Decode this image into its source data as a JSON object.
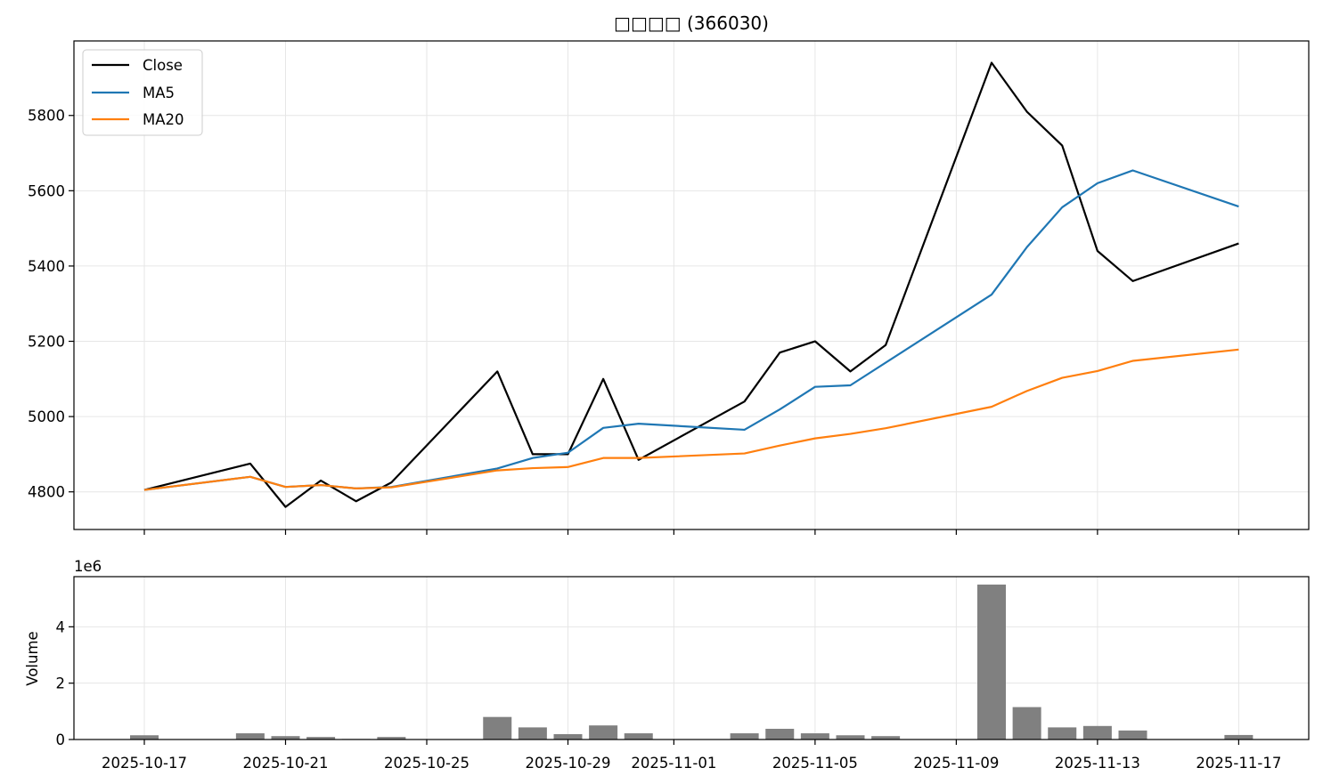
{
  "chart_data": [
    {
      "type": "line",
      "title": "□□□□ (366030)",
      "xlabel": "",
      "ylabel": "",
      "x": [
        "2025-10-17",
        "2025-10-20",
        "2025-10-21",
        "2025-10-22",
        "2025-10-23",
        "2025-10-24",
        "2025-10-27",
        "2025-10-28",
        "2025-10-29",
        "2025-10-30",
        "2025-10-31",
        "2025-11-03",
        "2025-11-04",
        "2025-11-05",
        "2025-11-06",
        "2025-11-07",
        "2025-11-10",
        "2025-11-11",
        "2025-11-12",
        "2025-11-13",
        "2025-11-14",
        "2025-11-17"
      ],
      "series": [
        {
          "name": "Close",
          "color": "#000000",
          "values": [
            4805,
            4875,
            4760,
            4830,
            4775,
            4825,
            5120,
            4900,
            4900,
            5100,
            4885,
            5040,
            5170,
            5200,
            5120,
            5190,
            5940,
            5810,
            5720,
            5440,
            5360,
            5460
          ]
        },
        {
          "name": "MA5",
          "color": "#1f77b4",
          "values": [
            4805,
            4840,
            4813,
            4818,
            4809,
            4813,
            4862,
            4890,
            4904,
            4970,
            4981,
            4965,
            5019,
            5079,
            5083,
            null,
            5324,
            5450,
            5556,
            5620,
            5654,
            5558
          ]
        },
        {
          "name": "MA20",
          "color": "#ff7f0e",
          "values": [
            4805,
            4840,
            4813,
            4818,
            4809,
            4812,
            4857,
            4863,
            4866,
            4890,
            4890,
            4902,
            4923,
            4942,
            4954,
            4969,
            5026,
            5068,
            5103,
            5121,
            5148,
            5178
          ]
        }
      ],
      "yticks": [
        4800,
        5000,
        5200,
        5400,
        5600,
        5800
      ],
      "ylim": [
        4700,
        5998
      ],
      "grid": true,
      "legend_position": "top-left"
    },
    {
      "type": "bar",
      "xlabel": "",
      "ylabel": "Volume",
      "offset_text": "1e6",
      "x": [
        "2025-10-17",
        "2025-10-20",
        "2025-10-21",
        "2025-10-22",
        "2025-10-23",
        "2025-10-24",
        "2025-10-27",
        "2025-10-28",
        "2025-10-29",
        "2025-10-30",
        "2025-10-31",
        "2025-11-03",
        "2025-11-04",
        "2025-11-05",
        "2025-11-06",
        "2025-11-07",
        "2025-11-10",
        "2025-11-11",
        "2025-11-12",
        "2025-11-13",
        "2025-11-14",
        "2025-11-17"
      ],
      "values": [
        150000,
        220000,
        120000,
        90000,
        20000,
        90000,
        800000,
        430000,
        190000,
        500000,
        220000,
        220000,
        380000,
        220000,
        150000,
        120000,
        5500000,
        1150000,
        430000,
        480000,
        320000,
        160000
      ],
      "bar_color": "#808080",
      "yticks": [
        0,
        2,
        4
      ],
      "ylim": [
        0,
        5780000
      ],
      "grid": true
    }
  ],
  "xticks": [
    "2025-10-17",
    "2025-10-21",
    "2025-10-25",
    "2025-10-29",
    "2025-11-01",
    "2025-11-05",
    "2025-11-09",
    "2025-11-13",
    "2025-11-17"
  ]
}
